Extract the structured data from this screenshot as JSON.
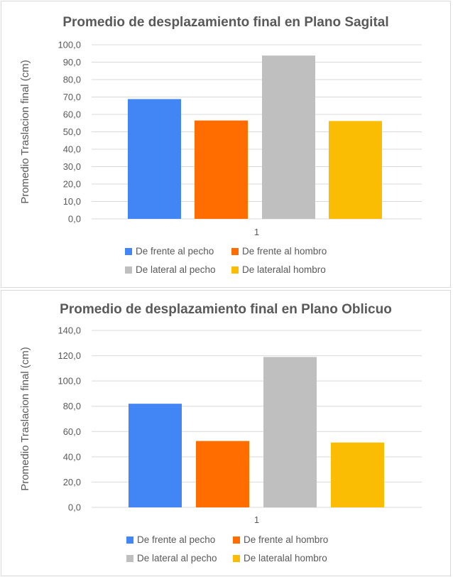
{
  "chart_data": [
    {
      "type": "bar",
      "title": "Promedio de desplazamiento final en Plano Sagital",
      "ylabel": "Promedio Traslacion final (cm)",
      "xlabel": "",
      "categories": [
        "1"
      ],
      "ylim": [
        0,
        100
      ],
      "y_ticks": [
        "0,0",
        "10,0",
        "20,0",
        "30,0",
        "40,0",
        "50,0",
        "60,0",
        "70,0",
        "80,0",
        "90,0",
        "100,0"
      ],
      "grid": true,
      "legend_position": "bottom",
      "series": [
        {
          "name": "De frente al pecho",
          "values": [
            68.8
          ],
          "color": "#4285f4"
        },
        {
          "name": "De frente al hombro",
          "values": [
            56.5
          ],
          "color": "#ff6d01"
        },
        {
          "name": "De lateral al pecho",
          "values": [
            93.8
          ],
          "color": "#bfbfbf"
        },
        {
          "name": "De lateralal hombro",
          "values": [
            56.2
          ],
          "color": "#fbbc04"
        }
      ]
    },
    {
      "type": "bar",
      "title": "Promedio de desplazamiento final en Plano Oblicuo",
      "ylabel": "Promedio Traslacion final (cm)",
      "xlabel": "",
      "categories": [
        "1"
      ],
      "ylim": [
        0,
        140
      ],
      "y_ticks": [
        "0,0",
        "20,0",
        "40,0",
        "60,0",
        "80,0",
        "100,0",
        "120,0",
        "140,0"
      ],
      "grid": true,
      "legend_position": "bottom",
      "series": [
        {
          "name": "De frente al pecho",
          "values": [
            82.0
          ],
          "color": "#4285f4"
        },
        {
          "name": "De frente al hombro",
          "values": [
            52.5
          ],
          "color": "#ff6d01"
        },
        {
          "name": "De lateral al pecho",
          "values": [
            119.0
          ],
          "color": "#bfbfbf"
        },
        {
          "name": "De lateralal hombro",
          "values": [
            51.3
          ],
          "color": "#fbbc04"
        }
      ]
    }
  ]
}
